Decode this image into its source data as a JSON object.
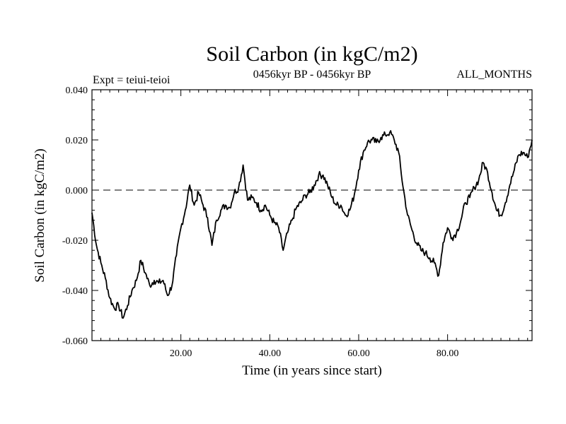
{
  "chart_data": {
    "type": "line",
    "title": "Soil Carbon (in kgC/m2)",
    "subtitle": "0456kyr BP - 0456kyr BP",
    "left_note": "Expt = teiui-teioi",
    "right_note": "ALL_MONTHS",
    "xlabel": "Time (in years since start)",
    "ylabel": "Soil Carbon (in kgC/m2)",
    "xlim": [
      0,
      99
    ],
    "ylim": [
      -0.06,
      0.04
    ],
    "x_ticks": [
      20,
      40,
      60,
      80
    ],
    "x_tick_labels": [
      "20.00",
      "40.00",
      "60.00",
      "80.00"
    ],
    "y_ticks": [
      -0.06,
      -0.04,
      -0.02,
      0.0,
      0.02,
      0.04
    ],
    "y_tick_labels": [
      "-0.060",
      "-0.040",
      "-0.020",
      "0.000",
      "0.020",
      "0.040"
    ],
    "reference_line": {
      "y": 0.0,
      "style": "dashed"
    },
    "series": [
      {
        "name": "Soil Carbon",
        "color": "#000000",
        "x": [
          0,
          1,
          2,
          3,
          4,
          5,
          6,
          7,
          8,
          9,
          10,
          11,
          12,
          13,
          14,
          15,
          16,
          17,
          18,
          19,
          20,
          21,
          22,
          23,
          24,
          25,
          26,
          27,
          28,
          29,
          30,
          31,
          32,
          33,
          34,
          35,
          36,
          37,
          38,
          39,
          40,
          41,
          42,
          43,
          44,
          45,
          46,
          47,
          48,
          49,
          50,
          51,
          52,
          53,
          54,
          55,
          56,
          57,
          58,
          59,
          60,
          61,
          62,
          63,
          64,
          65,
          66,
          67,
          68,
          69,
          70,
          71,
          72,
          73,
          74,
          75,
          76,
          77,
          78,
          79,
          80,
          81,
          82,
          83,
          84,
          85,
          86,
          87,
          88,
          89,
          90,
          91,
          92,
          93,
          94,
          95,
          96,
          97,
          98,
          99
        ],
        "y": [
          -0.009,
          -0.022,
          -0.029,
          -0.035,
          -0.043,
          -0.047,
          -0.046,
          -0.051,
          -0.046,
          -0.04,
          -0.036,
          -0.028,
          -0.033,
          -0.038,
          -0.036,
          -0.037,
          -0.036,
          -0.042,
          -0.038,
          -0.026,
          -0.015,
          -0.008,
          0.002,
          -0.006,
          -0.001,
          -0.006,
          -0.011,
          -0.022,
          -0.012,
          -0.008,
          -0.006,
          -0.007,
          -0.001,
          0.001,
          0.01,
          -0.004,
          -0.003,
          -0.005,
          -0.008,
          -0.006,
          -0.01,
          -0.013,
          -0.015,
          -0.024,
          -0.017,
          -0.012,
          -0.007,
          -0.005,
          -0.002,
          -0.001,
          0.002,
          0.006,
          0.006,
          0.002,
          -0.003,
          -0.006,
          -0.006,
          -0.01,
          -0.008,
          -0.002,
          0.008,
          0.015,
          0.019,
          0.02,
          0.019,
          0.021,
          0.022,
          0.023,
          0.02,
          0.015,
          0.001,
          -0.01,
          -0.016,
          -0.021,
          -0.024,
          -0.025,
          -0.027,
          -0.029,
          -0.034,
          -0.021,
          -0.015,
          -0.019,
          -0.017,
          -0.012,
          -0.005,
          -0.003,
          0.001,
          0.004,
          0.011,
          0.007,
          -0.001,
          -0.008,
          -0.01,
          -0.005,
          0.002,
          0.008,
          0.014,
          0.015,
          0.013,
          0.02
        ]
      }
    ]
  }
}
